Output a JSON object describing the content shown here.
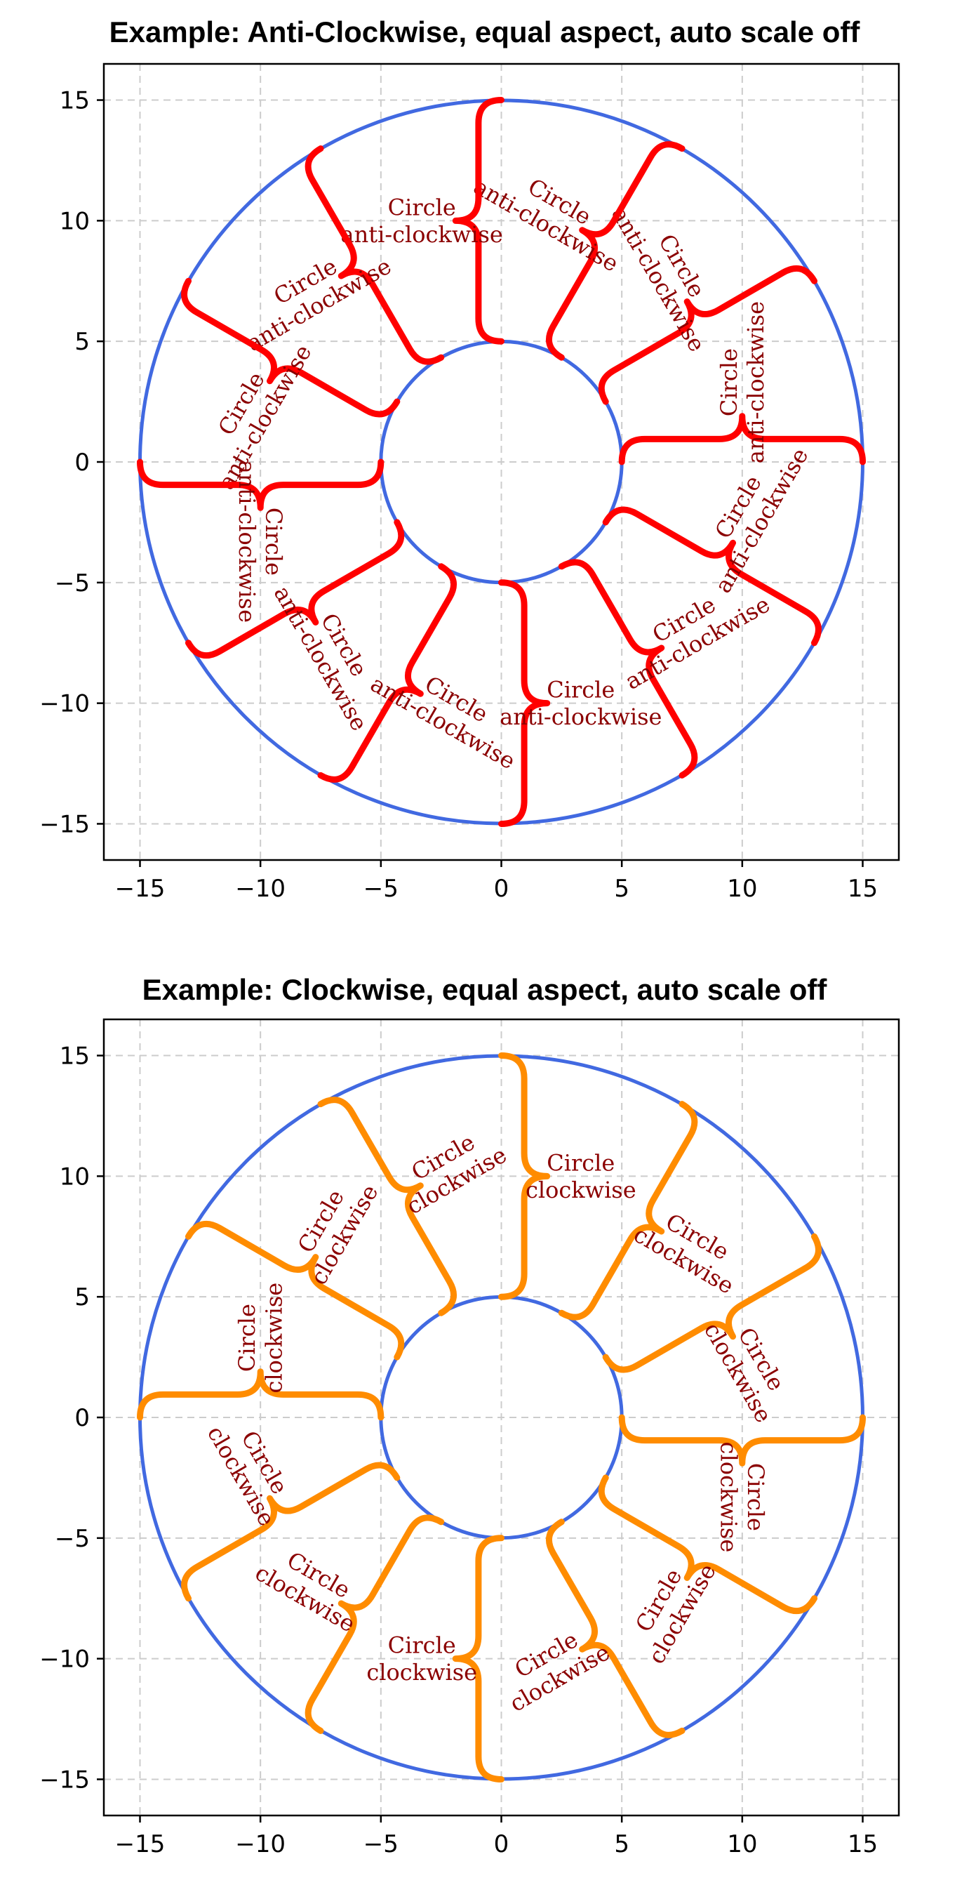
{
  "chart_data": [
    {
      "type": "line",
      "title": "Example: Anti-Clockwise, equal aspect, auto scale off",
      "xlim": [
        -16.5,
        16.5
      ],
      "ylim": [
        -16.5,
        16.5
      ],
      "xticks": [
        -15,
        -10,
        -5,
        0,
        5,
        10,
        15
      ],
      "yticks": [
        -15,
        -10,
        -5,
        0,
        5,
        10,
        15
      ],
      "xtick_labels": [
        "−15",
        "−10",
        "−5",
        "0",
        "5",
        "10",
        "15"
      ],
      "ytick_labels": [
        "−15",
        "−10",
        "−5",
        "0",
        "5",
        "10",
        "15"
      ],
      "grid": true,
      "aspect": "equal",
      "circles": [
        {
          "cx": 0,
          "cy": 0,
          "r": 15,
          "color": "#4169e1"
        },
        {
          "cx": 0,
          "cy": 0,
          "r": 5,
          "color": "#4169e1"
        }
      ],
      "brace_color": "#ff0000",
      "text_color": "#8b0000",
      "direction": "anti-clockwise",
      "brace_angles_deg": [
        0,
        30,
        60,
        90,
        120,
        150,
        180,
        210,
        240,
        270,
        300,
        330
      ],
      "brace_label_lines": [
        "Circle",
        "anti-clockwise"
      ]
    },
    {
      "type": "line",
      "title": "Example: Clockwise, equal aspect, auto scale off",
      "xlim": [
        -16.5,
        16.5
      ],
      "ylim": [
        -16.5,
        16.5
      ],
      "xticks": [
        -15,
        -10,
        -5,
        0,
        5,
        10,
        15
      ],
      "yticks": [
        -15,
        -10,
        -5,
        0,
        5,
        10,
        15
      ],
      "xtick_labels": [
        "−15",
        "−10",
        "−5",
        "0",
        "5",
        "10",
        "15"
      ],
      "ytick_labels": [
        "−15",
        "−10",
        "−5",
        "0",
        "5",
        "10",
        "15"
      ],
      "grid": true,
      "aspect": "equal",
      "circles": [
        {
          "cx": 0,
          "cy": 0,
          "r": 15,
          "color": "#4169e1"
        },
        {
          "cx": 0,
          "cy": 0,
          "r": 5,
          "color": "#4169e1"
        }
      ],
      "brace_color": "#ff8c00",
      "text_color": "#8b0000",
      "direction": "clockwise",
      "brace_angles_deg": [
        0,
        30,
        60,
        90,
        120,
        150,
        180,
        210,
        240,
        270,
        300,
        330
      ],
      "brace_label_lines": [
        "Circle",
        "clockwise"
      ]
    }
  ]
}
